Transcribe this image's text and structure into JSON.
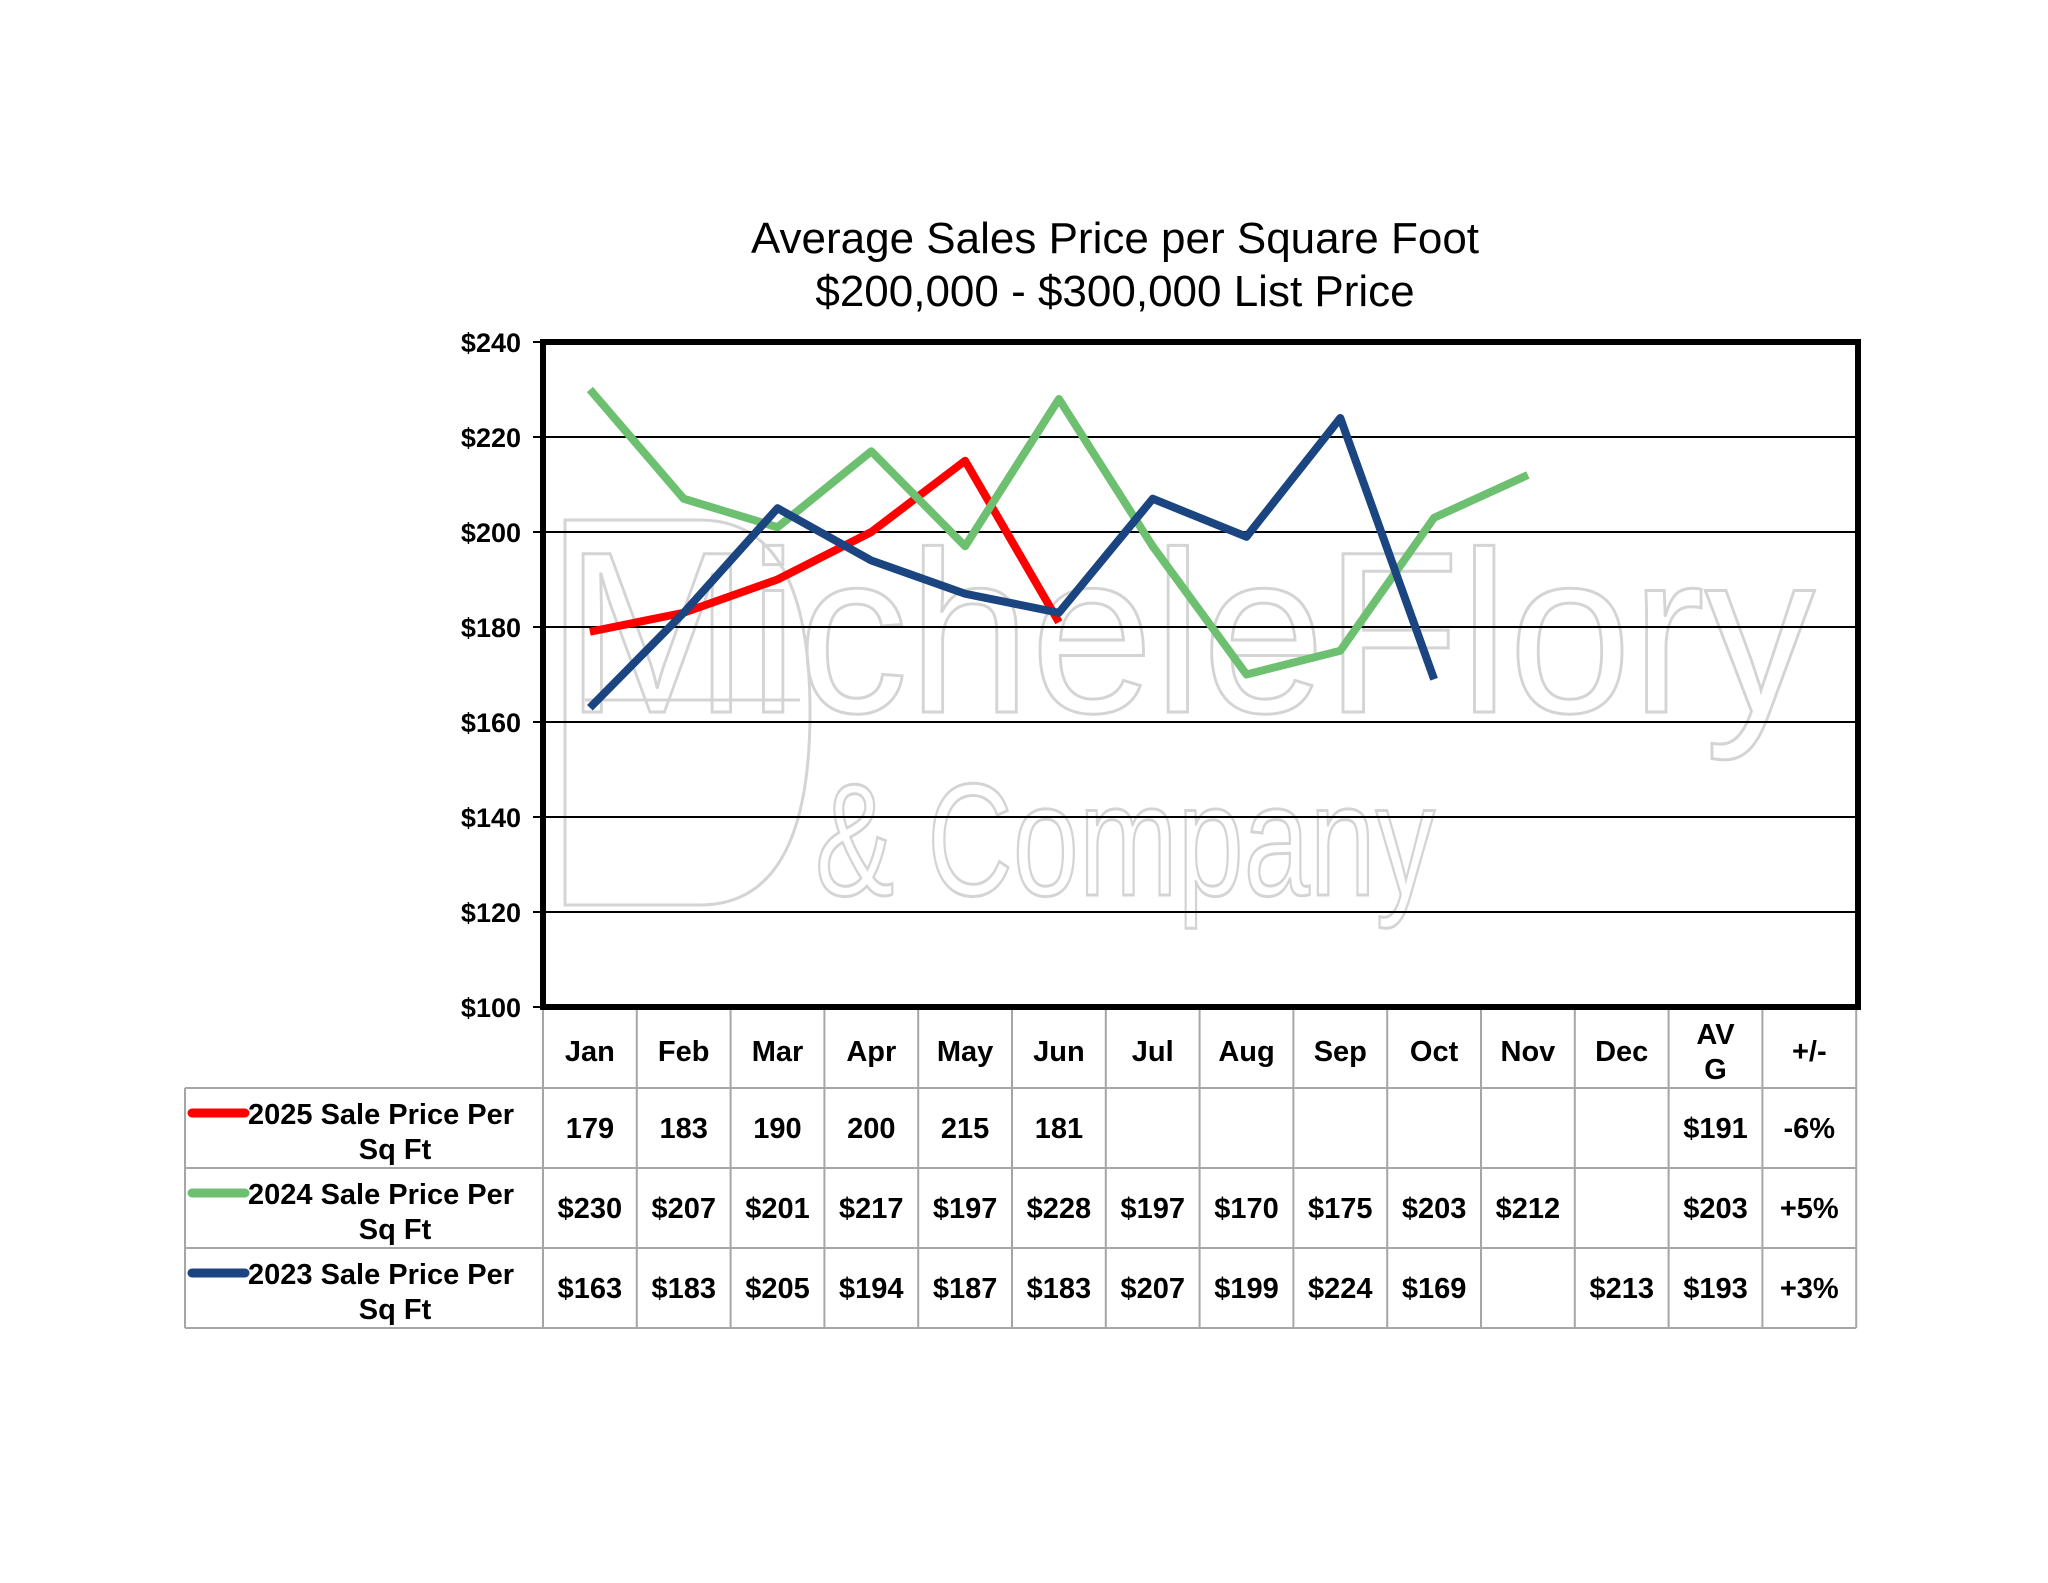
{
  "chart_data": {
    "type": "line",
    "title": "Average Sales Price per Square Foot",
    "subtitle": "$200,000 - $300,000 List Price",
    "categories": [
      "Jan",
      "Feb",
      "Mar",
      "Apr",
      "May",
      "Jun",
      "Jul",
      "Aug",
      "Sep",
      "Oct",
      "Nov",
      "Dec"
    ],
    "y_ticks": [
      "$240",
      "$220",
      "$200",
      "$180",
      "$160",
      "$140",
      "$120",
      "$100"
    ],
    "ylim": [
      100,
      240
    ],
    "grid": true,
    "legend": "table-below",
    "series": [
      {
        "name": "2025 Sale Price Per Sq Ft",
        "color": "#ff0000",
        "values": [
          179,
          183,
          190,
          200,
          215,
          181,
          null,
          null,
          null,
          null,
          null,
          null
        ],
        "labels": [
          "179",
          "183",
          "190",
          "200",
          "215",
          "181",
          "",
          "",
          "",
          "",
          "",
          ""
        ],
        "avg": "$191",
        "change": "-6%"
      },
      {
        "name": "2024 Sale Price Per Sq Ft",
        "color": "#6cc070",
        "values": [
          230,
          207,
          201,
          217,
          197,
          228,
          197,
          170,
          175,
          203,
          212,
          null
        ],
        "labels": [
          "$230",
          "$207",
          "$201",
          "$217",
          "$197",
          "$228",
          "$197",
          "$170",
          "$175",
          "$203",
          "$212",
          ""
        ],
        "avg": "$203",
        "change": "+5%"
      },
      {
        "name": "2023 Sale Price Per Sq Ft",
        "color": "#1a4580",
        "values": [
          163,
          183,
          205,
          194,
          187,
          183,
          207,
          199,
          224,
          169,
          null,
          213
        ],
        "labels": [
          "$163",
          "$183",
          "$205",
          "$194",
          "$187",
          "$183",
          "$207",
          "$199",
          "$224",
          "$169",
          "",
          "$213"
        ],
        "avg": "$193",
        "change": "+3%"
      }
    ],
    "table_headers": {
      "avg": "AVG",
      "change": "+/-"
    }
  },
  "watermark": {
    "line1": "MicheleFlory",
    "line2": "& Company"
  }
}
